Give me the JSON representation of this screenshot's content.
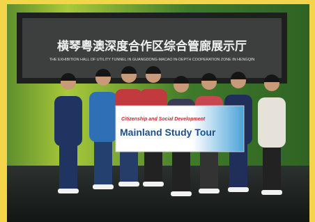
{
  "sign": {
    "title_zh": "横琴粤澳深度合作区综合管廊展示厅",
    "title_en": "THE EXHIBITION HALL OF UTILITY TUNNEL IN GUANGDONG-MACAO IN-DEPTH COOPERATION ZONE IN HENGQIN"
  },
  "banner": {
    "subtitle": "Citizenship and Social Development",
    "title": "Mainland Study Tour"
  }
}
